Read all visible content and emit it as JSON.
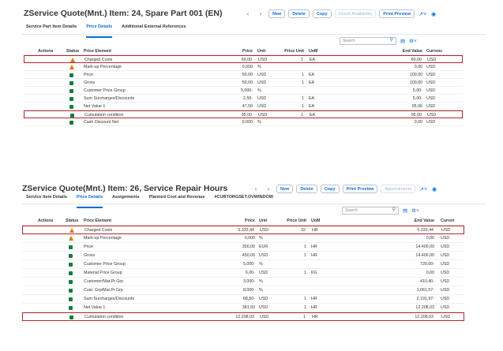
{
  "panels": [
    {
      "title": "ZService Quote(Mnt.) Item: 24, Spare Part 001 (EN)",
      "actions": [
        "New",
        "Delete",
        "Copy",
        "Check Availability",
        "Print Preview"
      ],
      "tabs": [
        "Service Part Item Details",
        "Price Details",
        "Additional External References"
      ],
      "active_tab": 1,
      "search_placeholder": "Search",
      "columns": [
        "Actions",
        "Status",
        "Price Element",
        "Price",
        "Unit",
        "Price Unit",
        "UoM",
        "End Value",
        "Currenc"
      ],
      "rows": [
        {
          "status": "warning",
          "element": "Charged Costs",
          "price": "60,00",
          "unit": "USD",
          "price_unit": "2",
          "uom": "EA",
          "end_value": "60,00",
          "currency": "USD",
          "highlight": true
        },
        {
          "status": "warning",
          "element": "Mark-up Percentage",
          "price": "0,000",
          "unit": "%",
          "price_unit": "",
          "uom": "",
          "end_value": "0,00",
          "currency": "USD",
          "highlight": false
        },
        {
          "status": "ok",
          "element": "Price",
          "price": "50,00",
          "unit": "USD",
          "price_unit": "1",
          "uom": "EA",
          "end_value": "100,00",
          "currency": "USD",
          "highlight": false
        },
        {
          "status": "ok",
          "element": "Gross",
          "price": "50,00",
          "unit": "USD",
          "price_unit": "1",
          "uom": "EA",
          "end_value": "100,00",
          "currency": "USD",
          "highlight": false
        },
        {
          "status": "ok",
          "element": "Customer Price Group",
          "price": "5,000-",
          "unit": "%",
          "price_unit": "",
          "uom": "",
          "end_value": "5,00-",
          "currency": "USD",
          "highlight": false
        },
        {
          "status": "ok",
          "element": "Sum Surcharges/Discounts",
          "price": "2,50-",
          "unit": "USD",
          "price_unit": "1",
          "uom": "EA",
          "end_value": "5,00-",
          "currency": "USD",
          "highlight": false
        },
        {
          "status": "ok",
          "element": "Net Value 1",
          "price": "47,50",
          "unit": "USD",
          "price_unit": "1",
          "uom": "EA",
          "end_value": "95,00",
          "currency": "USD",
          "highlight": false
        },
        {
          "status": "ok",
          "element": "Cumulation condition",
          "price": "95,00",
          "unit": "USD",
          "price_unit": "1",
          "uom": "EA",
          "end_value": "95,00",
          "currency": "USD",
          "highlight": true
        },
        {
          "status": "ok",
          "element": "Cash Discount Net",
          "price": "0,000",
          "unit": "%",
          "price_unit": "",
          "uom": "",
          "end_value": "0,00",
          "currency": "USD",
          "highlight": false
        }
      ]
    },
    {
      "title": "ZService Quote(Mnt.) Item: 26, Service Repair Hours",
      "actions": [
        "New",
        "Delete",
        "Copy",
        "Print Preview",
        "Appointments"
      ],
      "disabled_action": 4,
      "tabs": [
        "Service Item Details",
        "Price Details",
        "Assignments",
        "Planned Cost and Revenue",
        "#CUBTORGSET.OVWINDOW"
      ],
      "active_tab": 1,
      "search_placeholder": "Search",
      "columns": [
        "Actions",
        "Status",
        "Price Element",
        "Price",
        "Unit",
        "Price Unit",
        "UoM",
        "End Value",
        "Curren"
      ],
      "rows": [
        {
          "status": "warning",
          "element": "Charged Costs",
          "price": "5.333,44",
          "unit": "USD",
          "price_unit": "32",
          "uom": "HR",
          "end_value": "5.333,44",
          "currency": "USD",
          "highlight": true
        },
        {
          "status": "warning",
          "element": "Mark-up Percentage",
          "price": "0,000",
          "unit": "%",
          "price_unit": "",
          "uom": "",
          "end_value": "0,00",
          "currency": "USD",
          "highlight": false
        },
        {
          "status": "ok",
          "element": "Price",
          "price": "300,00",
          "unit": "EUR",
          "price_unit": "1",
          "uom": "HR",
          "end_value": "14.400,00",
          "currency": "USD",
          "highlight": false
        },
        {
          "status": "ok",
          "element": "Gross",
          "price": "450,00",
          "unit": "USD",
          "price_unit": "1",
          "uom": "HR",
          "end_value": "14.400,00",
          "currency": "USD",
          "highlight": false
        },
        {
          "status": "ok",
          "element": "Customer Price Group",
          "price": "5,000-",
          "unit": "%",
          "price_unit": "",
          "uom": "",
          "end_value": "720,00-",
          "currency": "USD",
          "highlight": false
        },
        {
          "status": "ok",
          "element": "Material Price Group",
          "price": "6,00-",
          "unit": "USD",
          "price_unit": "1",
          "uom": "KG",
          "end_value": "0,00",
          "currency": "USD",
          "highlight": false
        },
        {
          "status": "ok",
          "element": "Customer/Mat.Pr.Grp",
          "price": "3,000-",
          "unit": "%",
          "price_unit": "",
          "uom": "",
          "end_value": "410,40-",
          "currency": "USD",
          "highlight": false
        },
        {
          "status": "ok",
          "element": "Cust. Grp/Mat.Pr.Grp",
          "price": "8,000-",
          "unit": "%",
          "price_unit": "",
          "uom": "",
          "end_value": "1.061,57-",
          "currency": "USD",
          "highlight": false
        },
        {
          "status": "ok",
          "element": "Sum Surcharges/Discounts",
          "price": "68,50-",
          "unit": "USD",
          "price_unit": "1",
          "uom": "HR",
          "end_value": "2.191,97-",
          "currency": "USD",
          "highlight": false
        },
        {
          "status": "ok",
          "element": "Net Value 1",
          "price": "381,50",
          "unit": "USD",
          "price_unit": "1",
          "uom": "HR",
          "end_value": "12.208,03",
          "currency": "USD",
          "highlight": false
        },
        {
          "status": "ok",
          "element": "Cumulation condition",
          "price": "12.208,03",
          "unit": "USD",
          "price_unit": "1",
          "uom": "HR",
          "end_value": "12.208,03",
          "currency": "USD",
          "highlight": true
        }
      ]
    }
  ]
}
